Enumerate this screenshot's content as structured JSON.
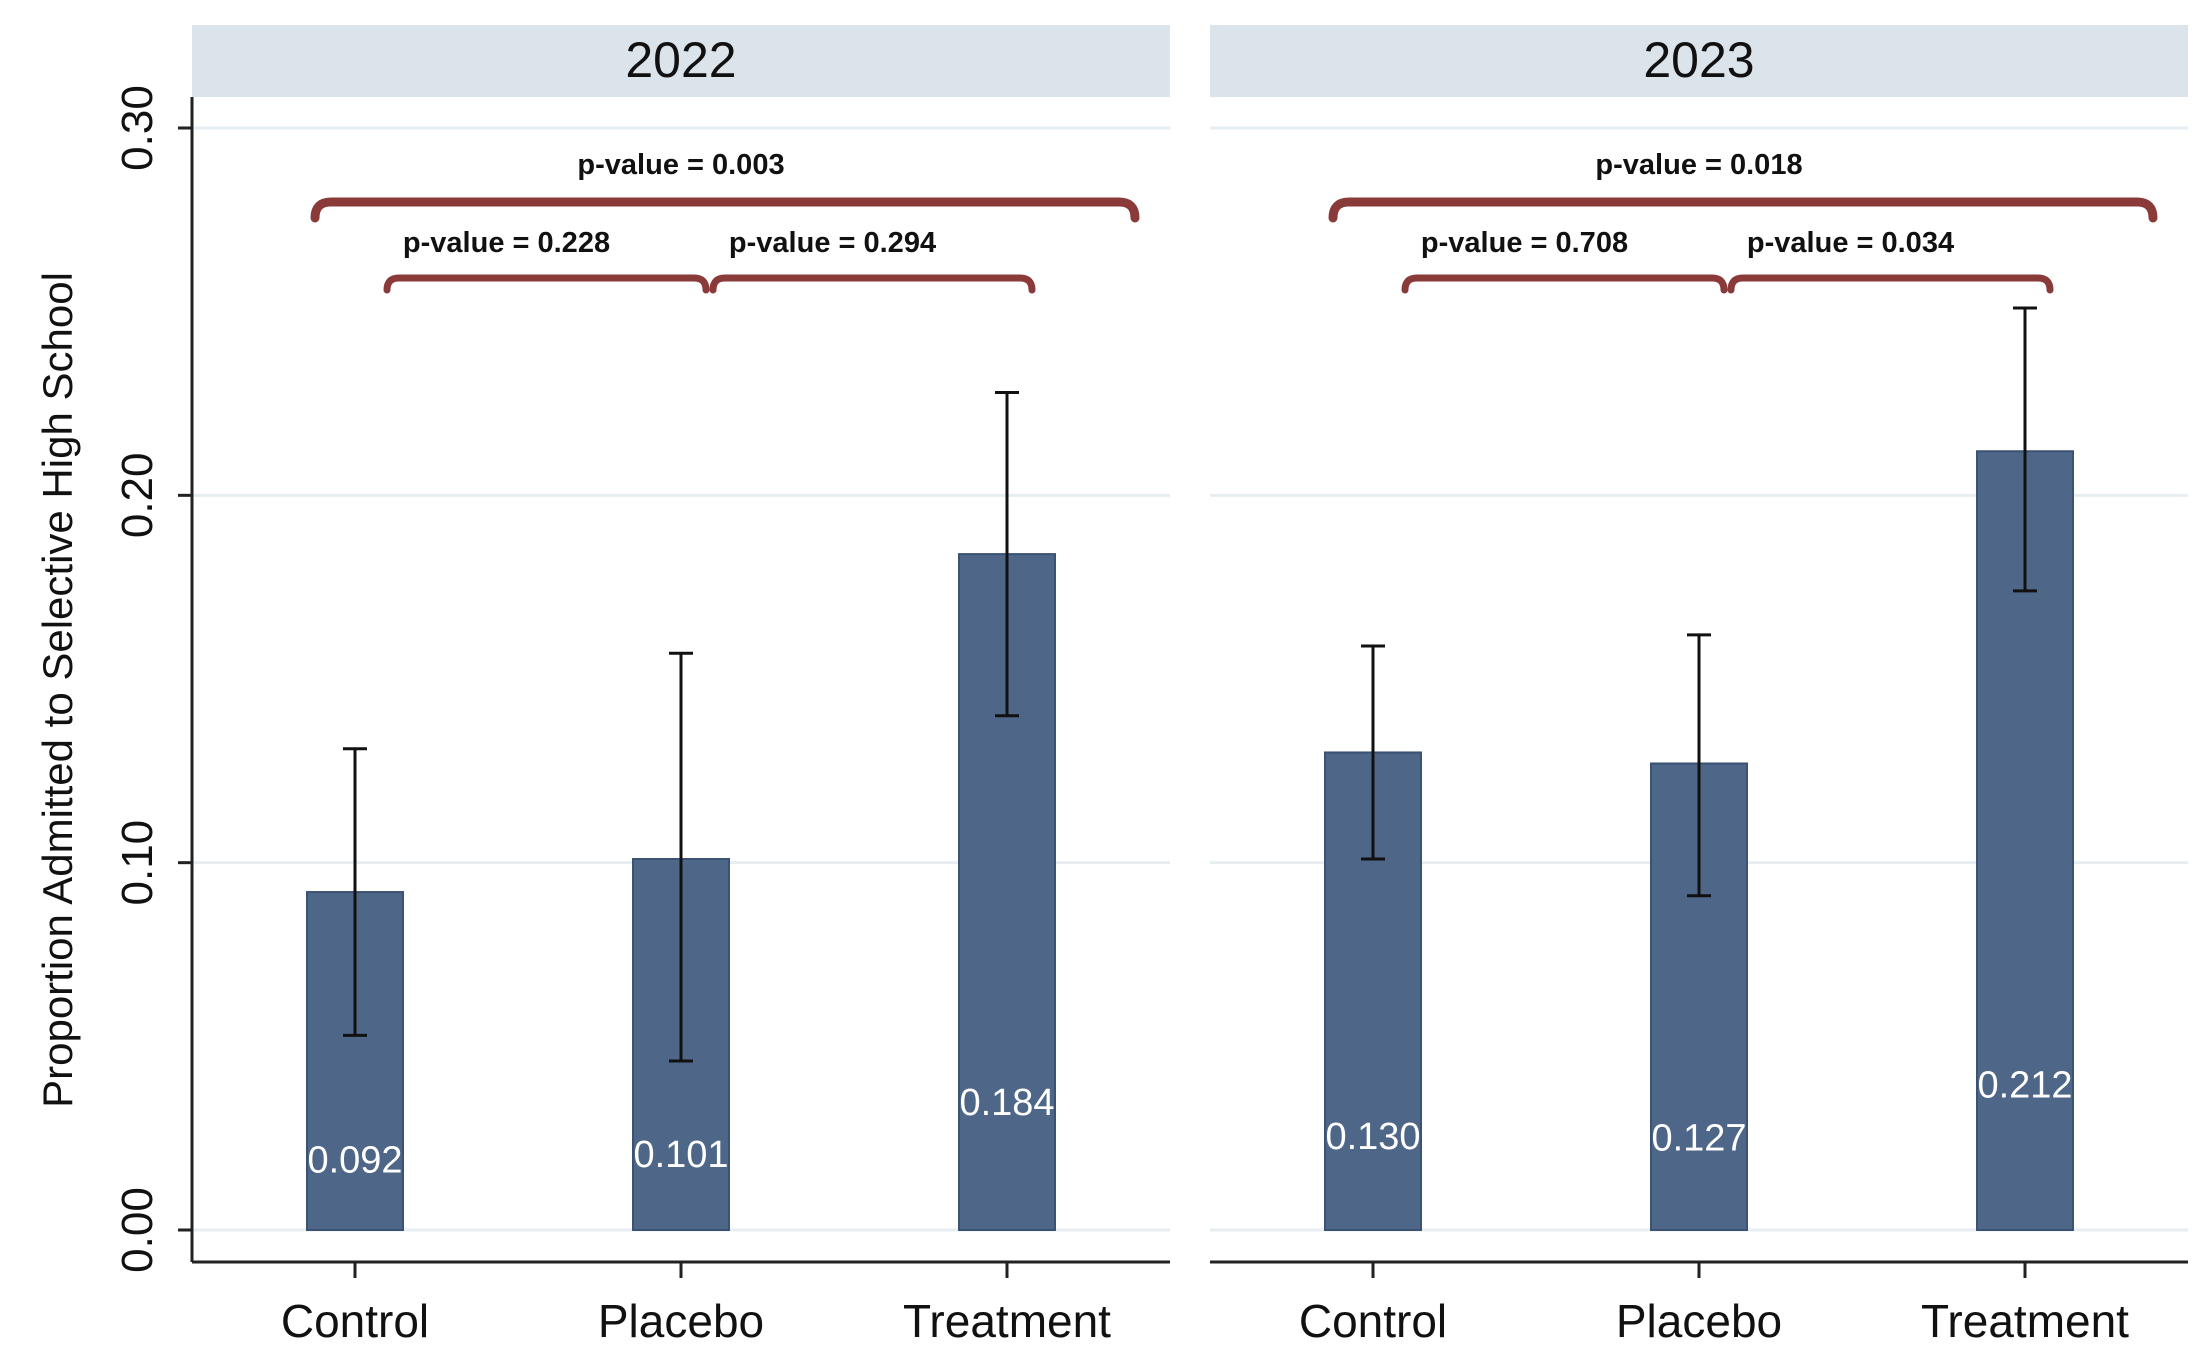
{
  "chart_data": {
    "type": "bar",
    "ylabel": "Proportion Admitted to Selective High School",
    "ylim": [
      0,
      0.3
    ],
    "yticks": [
      0.0,
      0.1,
      0.2,
      0.3
    ],
    "ytick_labels": [
      "0.00",
      "0.10",
      "0.20",
      "0.30"
    ],
    "grid": true,
    "bar_color": "#4e6688",
    "bracket_color": "#8b3a3a",
    "panels": [
      {
        "title": "2022",
        "categories": [
          "Control",
          "Placebo",
          "Treatment"
        ],
        "values": [
          0.092,
          0.101,
          0.184
        ],
        "value_labels": [
          "0.092",
          "0.101",
          "0.184"
        ],
        "ci_low": [
          0.053,
          0.046,
          0.14
        ],
        "ci_high": [
          0.131,
          0.157,
          0.228
        ],
        "comparisons": [
          {
            "from": 0,
            "to": 2,
            "label": "p-value = 0.003"
          },
          {
            "from": 0,
            "to": 1,
            "label": "p-value = 0.228"
          },
          {
            "from": 1,
            "to": 2,
            "label": "p-value = 0.294"
          }
        ]
      },
      {
        "title": "2023",
        "categories": [
          "Control",
          "Placebo",
          "Treatment"
        ],
        "values": [
          0.13,
          0.127,
          0.212
        ],
        "value_labels": [
          "0.130",
          "0.127",
          "0.212"
        ],
        "ci_low": [
          0.101,
          0.091,
          0.174
        ],
        "ci_high": [
          0.159,
          0.162,
          0.251
        ],
        "comparisons": [
          {
            "from": 0,
            "to": 2,
            "label": "p-value = 0.018"
          },
          {
            "from": 0,
            "to": 1,
            "label": "p-value = 0.708"
          },
          {
            "from": 1,
            "to": 2,
            "label": "p-value = 0.034"
          }
        ]
      }
    ]
  }
}
